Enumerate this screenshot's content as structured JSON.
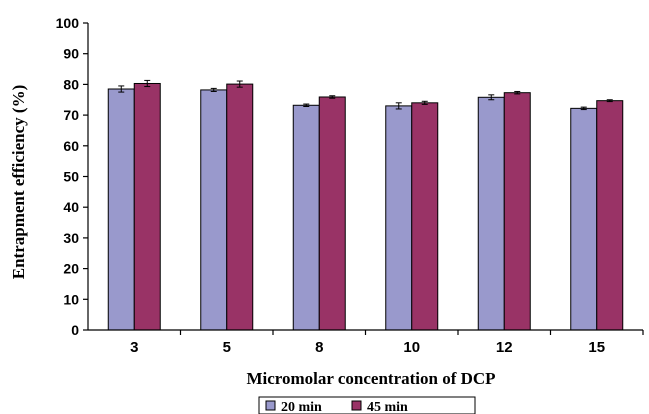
{
  "chart_data": {
    "type": "bar",
    "title": "",
    "xlabel": "Micromolar concentration of  DCP",
    "ylabel": "Entrapment efficiency (%)",
    "categories": [
      "3",
      "5",
      "8",
      "10",
      "12",
      "15"
    ],
    "ylim": [
      0,
      100
    ],
    "yticks": [
      "0",
      "10",
      "20",
      "30",
      "40",
      "50",
      "60",
      "70",
      "80",
      "90",
      "100"
    ],
    "grid": false,
    "legend_placement": "bottom",
    "series": [
      {
        "name": "20 min",
        "color": "#9999CC",
        "values": [
          78.5,
          78.2,
          73.2,
          73.0,
          75.8,
          72.2
        ],
        "errors": [
          1.0,
          0.5,
          0.4,
          1.0,
          0.8,
          0.4
        ]
      },
      {
        "name": "45 min",
        "color": "#993366",
        "values": [
          80.3,
          80.1,
          75.9,
          74.0,
          77.3,
          74.7
        ],
        "errors": [
          1.0,
          1.0,
          0.4,
          0.5,
          0.4,
          0.3
        ]
      }
    ]
  }
}
